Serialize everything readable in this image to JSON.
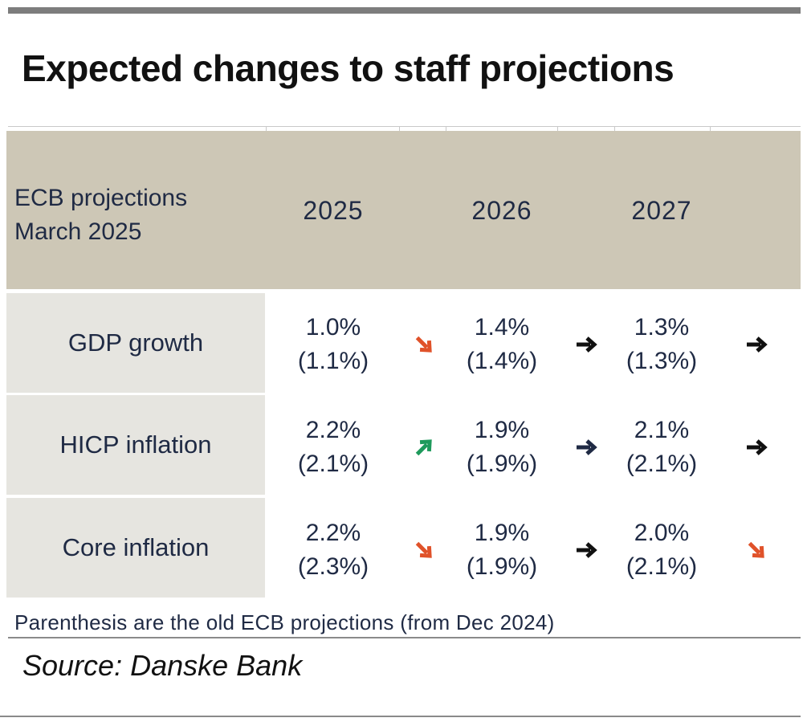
{
  "title": "Expected changes to staff projections",
  "header": {
    "label_line1": "ECB projections",
    "label_line2": "March 2025",
    "years": [
      "2025",
      "2026",
      "2027"
    ]
  },
  "rows": [
    {
      "label": "GDP growth",
      "cells": [
        {
          "new": "1.0%",
          "old": "(1.1%)",
          "arrow": "down-right",
          "arrow_color": "#e0522a"
        },
        {
          "new": "1.4%",
          "old": "(1.4%)",
          "arrow": "right",
          "arrow_color": "#111111"
        },
        {
          "new": "1.3%",
          "old": "(1.3%)",
          "arrow": "right",
          "arrow_color": "#111111"
        }
      ]
    },
    {
      "label": "HICP inflation",
      "cells": [
        {
          "new": "2.2%",
          "old": "(2.1%)",
          "arrow": "up-right",
          "arrow_color": "#1f9a5c"
        },
        {
          "new": "1.9%",
          "old": "(1.9%)",
          "arrow": "right",
          "arrow_color": "#1f2a44"
        },
        {
          "new": "2.1%",
          "old": "(2.1%)",
          "arrow": "right",
          "arrow_color": "#111111"
        }
      ]
    },
    {
      "label": "Core inflation",
      "cells": [
        {
          "new": "2.2%",
          "old": "(2.3%)",
          "arrow": "down-right",
          "arrow_color": "#e0522a"
        },
        {
          "new": "1.9%",
          "old": "(1.9%)",
          "arrow": "right",
          "arrow_color": "#111111"
        },
        {
          "new": "2.0%",
          "old": "(2.1%)",
          "arrow": "down-right",
          "arrow_color": "#e0522a"
        }
      ]
    }
  ],
  "note": "Parenthesis are the old ECB projections (from Dec 2024)",
  "source": "Source: Danske Bank",
  "colors": {
    "header_band": "#cdc7b6",
    "label_cell": "#e6e5e0",
    "text": "#1f2a44"
  }
}
